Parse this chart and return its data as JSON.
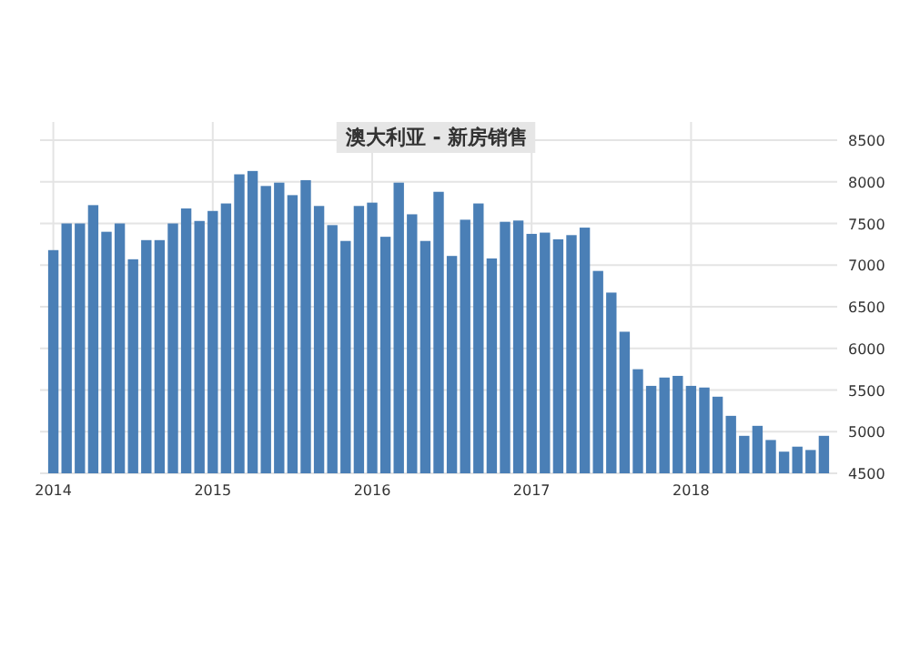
{
  "chart_data": {
    "type": "bar",
    "title": "澳大利亚 - 新房销售",
    "x": [
      "2014-01",
      "2014-02",
      "2014-03",
      "2014-04",
      "2014-05",
      "2014-06",
      "2014-07",
      "2014-08",
      "2014-09",
      "2014-10",
      "2014-11",
      "2014-12",
      "2015-01",
      "2015-02",
      "2015-03",
      "2015-04",
      "2015-05",
      "2015-06",
      "2015-07",
      "2015-08",
      "2015-09",
      "2015-10",
      "2015-11",
      "2015-12",
      "2016-01",
      "2016-02",
      "2016-03",
      "2016-04",
      "2016-05",
      "2016-06",
      "2016-07",
      "2016-08",
      "2016-09",
      "2016-10",
      "2016-11",
      "2016-12",
      "2017-01",
      "2017-02",
      "2017-03",
      "2017-04",
      "2017-05",
      "2017-06",
      "2017-07",
      "2017-08",
      "2017-09",
      "2017-10",
      "2017-11",
      "2017-12",
      "2018-01",
      "2018-02",
      "2018-03",
      "2018-04",
      "2018-05",
      "2018-06",
      "2018-07",
      "2018-08",
      "2018-09",
      "2018-10",
      "2018-11"
    ],
    "values": [
      7180,
      7500,
      7500,
      7720,
      7400,
      7500,
      7070,
      7300,
      7300,
      7500,
      7680,
      7530,
      7650,
      7740,
      8090,
      8130,
      7950,
      7990,
      7840,
      8020,
      7710,
      7480,
      7290,
      7710,
      7750,
      7340,
      7990,
      7610,
      7290,
      7880,
      7110,
      7545,
      7740,
      7080,
      7520,
      7535,
      7375,
      7390,
      7310,
      7360,
      7450,
      6930,
      6670,
      6200,
      5750,
      5550,
      5650,
      5670,
      5550,
      5530,
      5420,
      5190,
      4950,
      5070,
      4900,
      4760,
      4820,
      4780,
      4950
    ],
    "color": "#4a7fb6",
    "xlim": [
      "2013-12",
      "2018-12"
    ],
    "xticks": [
      {
        "value": "2014-01",
        "label": "2014"
      },
      {
        "value": "2015-01",
        "label": "2015"
      },
      {
        "value": "2016-01",
        "label": "2016"
      },
      {
        "value": "2017-01",
        "label": "2017"
      },
      {
        "value": "2018-01",
        "label": "2018"
      }
    ],
    "ylim": [
      4500,
      8500
    ],
    "yticks": [
      4500,
      5000,
      5500,
      6000,
      6500,
      7000,
      7500,
      8000,
      8500
    ],
    "grid": true
  }
}
